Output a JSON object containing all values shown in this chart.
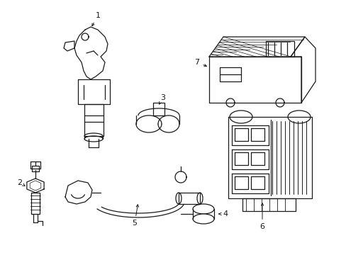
{
  "background_color": "#ffffff",
  "line_color": "#1a1a1a",
  "figsize": [
    4.89,
    3.6
  ],
  "dpi": 100,
  "lw": 0.9
}
